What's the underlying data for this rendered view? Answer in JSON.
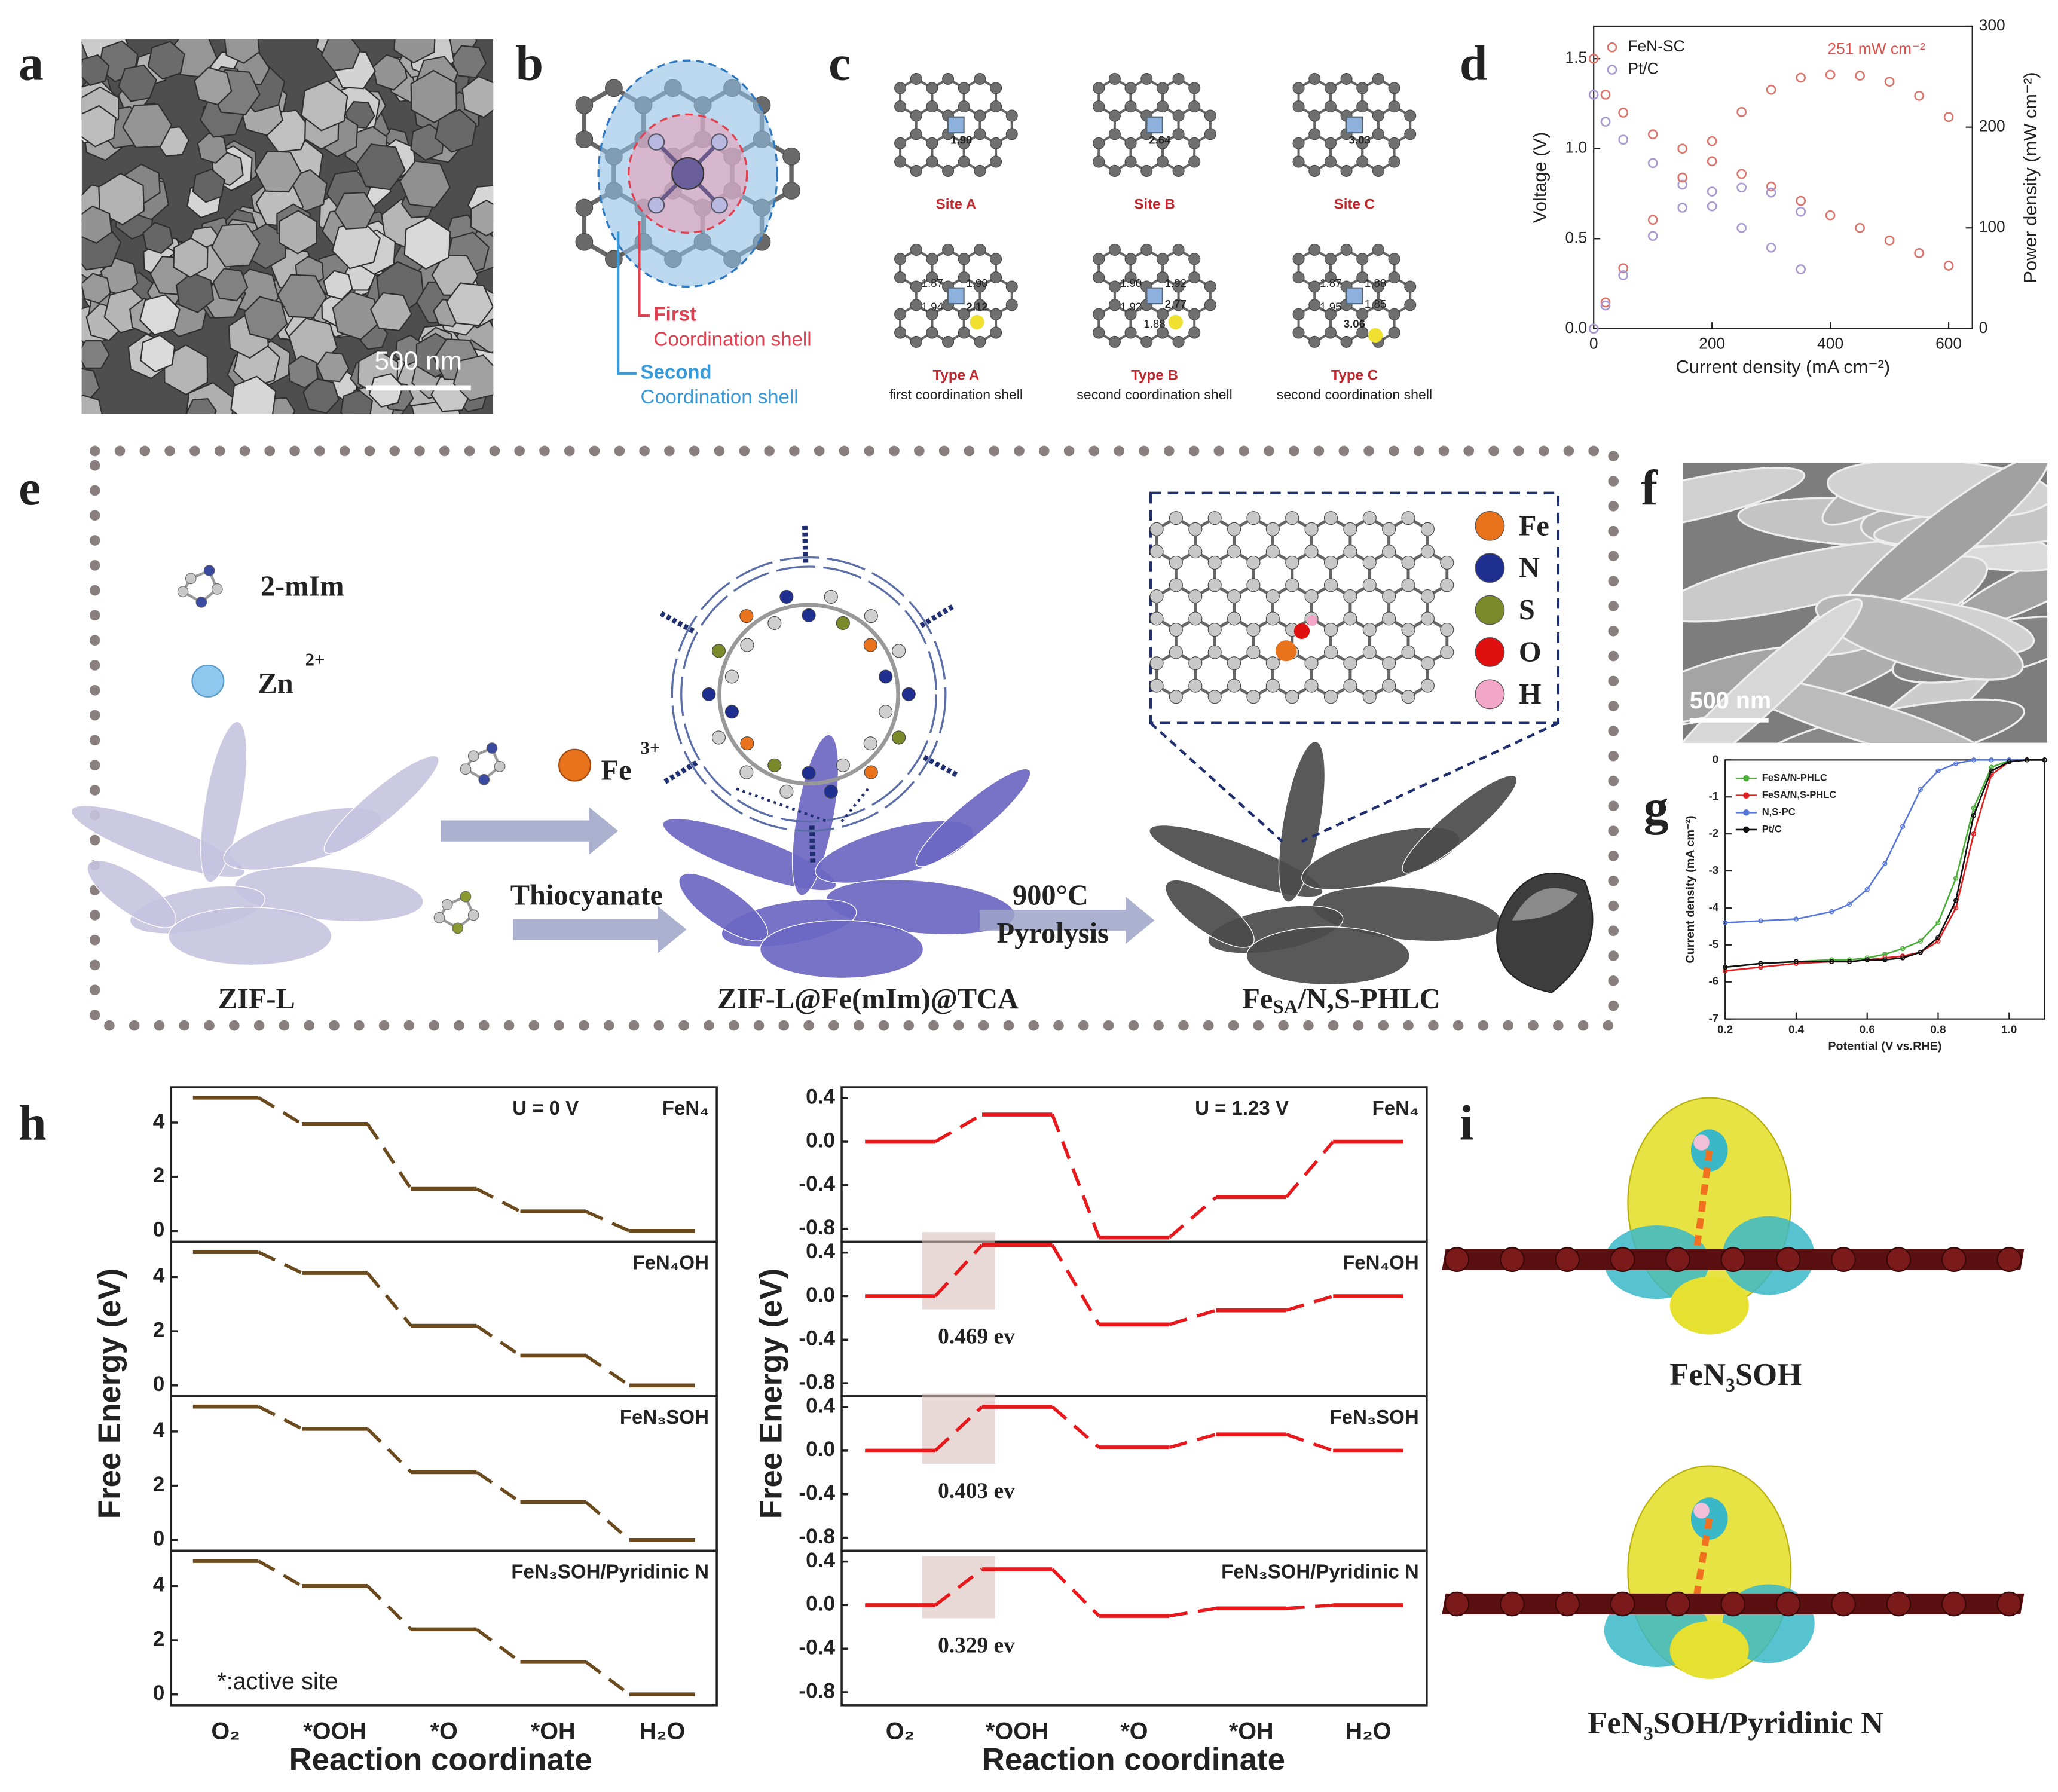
{
  "panel_labels": [
    "a",
    "b",
    "c",
    "d",
    "e",
    "f",
    "g",
    "h",
    "i"
  ],
  "panel_a": {
    "scale_bar": "500 nm"
  },
  "panel_b": {
    "first_shell": [
      "First",
      "Coordination shell"
    ],
    "second_shell": [
      "Second",
      "Coordination shell"
    ]
  },
  "panel_c": {
    "structures": [
      {
        "label": "Site A",
        "bonds": [
          "1.90"
        ]
      },
      {
        "label": "Site B",
        "bonds": [
          "2.64"
        ]
      },
      {
        "label": "Site C",
        "bonds": [
          "3.03"
        ]
      },
      {
        "label": "Type A",
        "caption": "first coordination shell",
        "bonds": [
          "1.87",
          "1.90",
          "1.94",
          "2.12"
        ]
      },
      {
        "label": "Type B",
        "caption": "second coordination shell",
        "bonds": [
          "1.90",
          "1.92",
          "1.92",
          "2.77",
          "1.88"
        ]
      },
      {
        "label": "Type C",
        "caption": "second coordination shell",
        "bonds": [
          "1.87",
          "1.88",
          "1.95",
          "1.85",
          "3.06"
        ]
      }
    ]
  },
  "panel_e": {
    "linker": "2-mIm",
    "zinc": "Zn",
    "zinc_charge": "2+",
    "iron": "Fe",
    "iron_charge": "3+",
    "thiocyanate": "Thiocyanate",
    "temperature": "900°C",
    "process": "Pyrolysis",
    "stages": [
      "ZIF-L",
      "ZIF-L@Fe(mIm)@TCA",
      {
        "main": "Fe",
        "sub": "SA",
        "rest": "/N,S-PHLC"
      }
    ],
    "elements": [
      {
        "label": "Fe",
        "color": "#e8731c"
      },
      {
        "label": "N",
        "color": "#1f2f8f"
      },
      {
        "label": "S",
        "color": "#7a8a2a"
      },
      {
        "label": "O",
        "color": "#e01010"
      },
      {
        "label": "H",
        "color": "#f2a6c8"
      }
    ]
  },
  "panel_f": {
    "scale_bar": "500 nm"
  },
  "panel_h": {
    "ylabel": "Free Energy (eV)",
    "xlabel": "Reaction coordinate"
  },
  "panel_i": {
    "labels": [
      "FeN₃SOH",
      "FeN₃SOH/Pyridinic N"
    ]
  },
  "chart_data": [
    {
      "type": "scatter",
      "xlabel": "Current density (mA cm⁻²)",
      "ylabel": "Voltage (V)",
      "y2label": "Power density (mW cm⁻²)",
      "xlim": [
        0,
        640
      ],
      "xticks": [
        0,
        200,
        400,
        600
      ],
      "ylim": [
        0,
        1.68
      ],
      "yticks": [
        {
          "value": 0,
          "label": "0.0"
        },
        0.5,
        {
          "value": 1,
          "label": "1.0"
        },
        1.5
      ],
      "y2lim": [
        0,
        300
      ],
      "y2ticks": [
        0,
        100,
        200,
        300
      ],
      "annotation": "251 mW cm⁻²",
      "legend": "upper left",
      "series": [
        {
          "name": "FeN-SC",
          "color": "#d9776f",
          "x": [
            0,
            20,
            50,
            100,
            150,
            200,
            250,
            300,
            350,
            400,
            450,
            500,
            550,
            600
          ],
          "values": [
            1.5,
            1.3,
            1.2,
            1.08,
            1.0,
            0.93,
            0.86,
            0.79,
            0.71,
            0.63,
            0.56,
            0.49,
            0.42,
            0.35
          ]
        },
        {
          "name": "Pt/C",
          "color": "#a99ad0",
          "x": [
            0,
            20,
            50,
            100,
            150,
            200,
            250,
            300,
            350
          ],
          "values": [
            1.3,
            1.15,
            1.05,
            0.92,
            0.8,
            0.68,
            0.56,
            0.45,
            0.33
          ]
        },
        {
          "color": "#d9776f",
          "axis": "y2",
          "x": [
            0,
            20,
            50,
            100,
            150,
            200,
            250,
            300,
            350,
            400,
            450,
            500,
            550,
            600
          ],
          "values": [
            0,
            26,
            60,
            108,
            150,
            186,
            215,
            237,
            249,
            252,
            251,
            245,
            231,
            210
          ]
        },
        {
          "color": "#a99ad0",
          "axis": "y2",
          "x": [
            0,
            20,
            50,
            100,
            150,
            200,
            250,
            300,
            350
          ],
          "values": [
            0,
            23,
            53,
            92,
            120,
            136,
            140,
            135,
            116
          ]
        }
      ]
    },
    {
      "type": "line",
      "xlabel": "Potential (V vs.RHE)",
      "ylabel": "Current density (mA cm⁻²)",
      "xlim": [
        0.2,
        1.1
      ],
      "xticks": [
        0.2,
        0.4,
        0.6,
        0.8,
        {
          "value": 1,
          "label": "1.0"
        }
      ],
      "ylim": [
        -7,
        0
      ],
      "yticks": [
        0,
        -1,
        -2,
        -3,
        -4,
        -5,
        -6,
        -7
      ],
      "legend": "upper left",
      "x": [
        0.2,
        0.3,
        0.4,
        0.5,
        0.55,
        0.6,
        0.65,
        0.7,
        0.75,
        0.8,
        0.85,
        0.9,
        0.95,
        1.0,
        1.05,
        1.1
      ],
      "series": [
        {
          "name": "FeSA/N-PHLC",
          "color": "#4caf3a",
          "values": [
            -5.6,
            -5.5,
            -5.45,
            -5.4,
            -5.4,
            -5.35,
            -5.25,
            -5.1,
            -4.9,
            -4.4,
            -3.2,
            -1.3,
            -0.2,
            -0.02,
            0,
            0
          ]
        },
        {
          "name": "FeSA/N,S-PHLC",
          "color": "#e02020",
          "values": [
            -5.7,
            -5.6,
            -5.5,
            -5.45,
            -5.45,
            -5.4,
            -5.35,
            -5.3,
            -5.2,
            -4.9,
            -4.0,
            -2.0,
            -0.4,
            -0.05,
            0,
            0
          ]
        },
        {
          "name": "N,S-PC",
          "color": "#5a78d8",
          "values": [
            -4.4,
            -4.35,
            -4.3,
            -4.1,
            -3.9,
            -3.5,
            -2.8,
            -1.8,
            -0.8,
            -0.3,
            -0.1,
            0,
            0,
            0,
            0,
            0
          ]
        },
        {
          "name": "Pt/C",
          "color": "#111111",
          "values": [
            -5.6,
            -5.5,
            -5.45,
            -5.45,
            -5.45,
            -5.4,
            -5.4,
            -5.35,
            -5.2,
            -4.8,
            -3.8,
            -1.5,
            -0.3,
            -0.05,
            0,
            0
          ]
        }
      ]
    },
    {
      "type": "step",
      "label": "FeN₄",
      "annotation": "U = 0 V",
      "color": "#6b4a1e",
      "ylim": [
        -0.4,
        5.3
      ],
      "yticks": [
        0,
        2,
        4
      ],
      "values": [
        4.92,
        3.95,
        1.55,
        0.72,
        0
      ]
    },
    {
      "type": "step",
      "label": "FeN₄OH",
      "color": "#6b4a1e",
      "ylim": [
        -0.4,
        5.3
      ],
      "yticks": [
        0,
        2,
        4
      ],
      "values": [
        4.92,
        4.15,
        2.2,
        1.1,
        0
      ]
    },
    {
      "type": "step",
      "label": "FeN₃SOH",
      "color": "#6b4a1e",
      "ylim": [
        -0.4,
        5.3
      ],
      "yticks": [
        0,
        2,
        4
      ],
      "values": [
        4.92,
        4.1,
        2.5,
        1.4,
        0
      ]
    },
    {
      "type": "step",
      "label": "FeN₃SOH/Pyridinic N",
      "note": "*:active site",
      "color": "#6b4a1e",
      "ylim": [
        -0.4,
        5.3
      ],
      "yticks": [
        0,
        2,
        4
      ],
      "values": [
        4.92,
        4.0,
        2.4,
        1.2,
        0
      ],
      "categories": [
        "O₂",
        "*OOH",
        "*O",
        "*OH",
        "H₂O"
      ]
    },
    {
      "type": "step",
      "label": "FeN₄",
      "annotation": "U = 1.23 V",
      "color": "#e8191c",
      "ylim": [
        -0.92,
        0.5
      ],
      "yticks": [
        -0.8,
        -0.4,
        {
          "value": 0,
          "label": "0.0"
        },
        0.4
      ],
      "values": [
        0,
        0.25,
        -0.88,
        -0.51,
        0
      ]
    },
    {
      "type": "step",
      "label": "FeN₄OH",
      "barrier": "0.469 ev",
      "color": "#e8191c",
      "ylim": [
        -0.92,
        0.5
      ],
      "yticks": [
        -0.8,
        -0.4,
        {
          "value": 0,
          "label": "0.0"
        },
        0.4
      ],
      "values": [
        0,
        0.469,
        -0.26,
        -0.13,
        0
      ]
    },
    {
      "type": "step",
      "label": "FeN₃SOH",
      "barrier": "0.403 ev",
      "color": "#e8191c",
      "ylim": [
        -0.92,
        0.5
      ],
      "yticks": [
        -0.8,
        -0.4,
        {
          "value": 0,
          "label": "0.0"
        },
        0.4
      ],
      "values": [
        0,
        0.403,
        0.03,
        0.15,
        0
      ]
    },
    {
      "type": "step",
      "label": "FeN₃SOH/Pyridinic N",
      "barrier": "0.329 ev",
      "color": "#e8191c",
      "ylim": [
        -0.92,
        0.5
      ],
      "yticks": [
        -0.8,
        -0.4,
        {
          "value": 0,
          "label": "0.0"
        },
        0.4
      ],
      "values": [
        0,
        0.329,
        -0.1,
        -0.03,
        0
      ],
      "categories": [
        "O₂",
        "*OOH",
        "*O",
        "*OH",
        "H₂O"
      ]
    }
  ]
}
